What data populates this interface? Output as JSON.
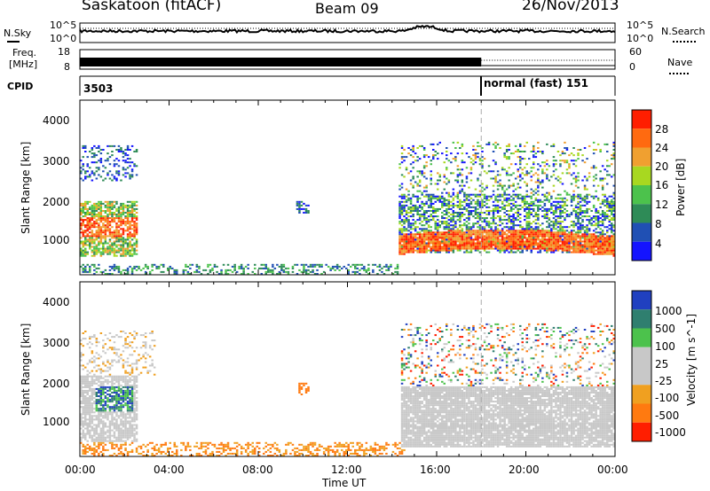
{
  "header": {
    "station": "Saskatoon (fitACF)",
    "beam": "Beam 09",
    "date": "26/Nov/2013"
  },
  "side_labels": {
    "nsky": "N.Sky",
    "freq_line1": "Freq.",
    "freq_line2": "[MHz]",
    "cpid": "CPID",
    "nsearch": "N.Search",
    "nave": "Nave"
  },
  "strip_ticks": {
    "noise_left": [
      "10^5",
      "10^0"
    ],
    "noise_right": [
      "10^5",
      "10^0"
    ],
    "freq_left": [
      "18",
      "8"
    ],
    "nave_right": [
      "60",
      "0"
    ]
  },
  "cpid": {
    "first": "3503",
    "second": "normal (fast) 151",
    "switch_time_hours": 18.0
  },
  "colors": {
    "power_scale": [
      "#1414ff",
      "#2050b4",
      "#2e8b57",
      "#4cc24c",
      "#a8d820",
      "#f0a030",
      "#ff6a10",
      "#ff1e00"
    ],
    "velocity_scale": [
      "#2040c0",
      "#2f7f6f",
      "#4cc24c",
      "#c8c8c8",
      "#c8c8c8",
      "#f0a020",
      "#ff7a10",
      "#ff1e00"
    ],
    "gap": "#ffffff"
  },
  "chart_data": [
    {
      "type": "heatmap",
      "panel": "power",
      "ylabel": "Slant Range [km]",
      "colorbar_label": "Power [dB]",
      "colorbar_ticks": [
        "28",
        "24",
        "20",
        "16",
        "12",
        "8",
        "4"
      ],
      "x_range_hours": [
        0,
        24
      ],
      "ylim": [
        180,
        4550
      ],
      "y_ticks": [
        "1000",
        "2000",
        "3000",
        "4000"
      ],
      "dominant_features": [
        {
          "name": "early evening echoes",
          "t": [
            0.0,
            2.6
          ],
          "range": [
            600,
            2000
          ],
          "power_db": [
            8,
            28
          ]
        },
        {
          "name": "dayside echoes",
          "t": [
            14.2,
            24.0
          ],
          "range": [
            700,
            3500
          ],
          "power_db": [
            4,
            28
          ]
        },
        {
          "name": "near-range ground scatter",
          "t": [
            0.0,
            14.5
          ],
          "range": [
            180,
            450
          ],
          "power_db": [
            4,
            12
          ]
        }
      ]
    },
    {
      "type": "heatmap",
      "panel": "velocity",
      "ylabel": "Slant Range [km]",
      "colorbar_label": "Velocity [m s^-1]",
      "colorbar_ticks": [
        "1000",
        "500",
        "100",
        "25",
        "-25",
        "-100",
        "-500",
        "-1000"
      ],
      "x_range_hours": [
        0,
        24
      ],
      "ylim": [
        180,
        4550
      ],
      "y_ticks": [
        "1000",
        "2000",
        "3000",
        "4000"
      ],
      "dominant_features": [
        {
          "name": "ground scatter (grey)",
          "t": [
            14.5,
            24.0
          ],
          "range": [
            500,
            1800
          ],
          "velocity": [
            -25,
            25
          ]
        },
        {
          "name": "positive velocity patch",
          "t": [
            0.6,
            2.4
          ],
          "range": [
            1300,
            1900
          ],
          "velocity": [
            100,
            1000
          ]
        }
      ]
    }
  ],
  "x_axis": {
    "ticks": [
      "00:00",
      "04:00",
      "08:00",
      "12:00",
      "16:00",
      "20:00",
      "00:00"
    ],
    "label": "Time UT"
  }
}
